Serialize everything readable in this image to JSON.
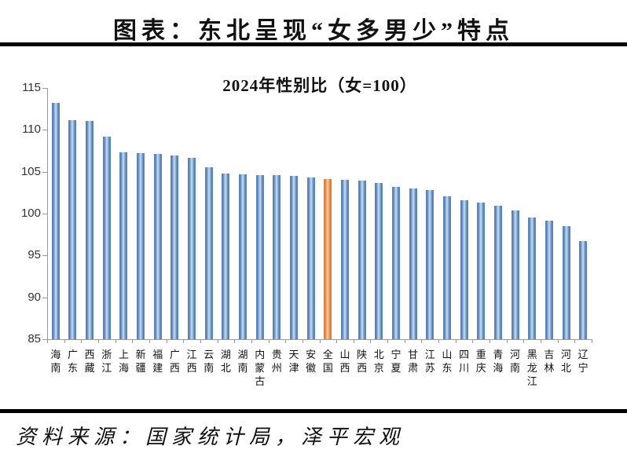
{
  "header": {
    "title": "图表：东北呈现“女多男少”特点"
  },
  "footer": {
    "source": "资料来源：国家统计局，泽平宏观"
  },
  "chart_data": {
    "type": "bar",
    "title": "2024年性别比（女=100）",
    "categories": [
      "海南",
      "广东",
      "西藏",
      "浙江",
      "上海",
      "新疆",
      "福建",
      "广西",
      "江西",
      "云南",
      "湖北",
      "湖南",
      "内蒙古",
      "贵州",
      "天津",
      "安徽",
      "全国",
      "山西",
      "陕西",
      "北京",
      "宁夏",
      "甘肃",
      "江苏",
      "山东",
      "四川",
      "重庆",
      "青海",
      "河南",
      "黑龙江",
      "吉林",
      "河北",
      "辽宁"
    ],
    "values": [
      113.2,
      111.2,
      111.1,
      109.2,
      107.3,
      107.2,
      107.1,
      106.9,
      106.7,
      105.5,
      104.8,
      104.7,
      104.6,
      104.6,
      104.5,
      104.3,
      104.1,
      104.0,
      103.9,
      103.7,
      103.2,
      103.0,
      102.8,
      102.1,
      101.6,
      101.3,
      100.9,
      100.4,
      99.5,
      99.2,
      98.5,
      96.7
    ],
    "highlight_category": "全国",
    "highlight_index": 16,
    "xlabel": "",
    "ylabel": "",
    "ylim": [
      85,
      115
    ],
    "yticks": [
      85,
      90,
      95,
      100,
      105,
      110,
      115
    ],
    "grid": false,
    "legend": false,
    "colors": {
      "bar": "#4d7fba",
      "bar_light": "#cfdded",
      "highlight": "#e4782f",
      "highlight_light": "#fbd7b4",
      "axis": "#999999",
      "text": "#111111"
    }
  }
}
